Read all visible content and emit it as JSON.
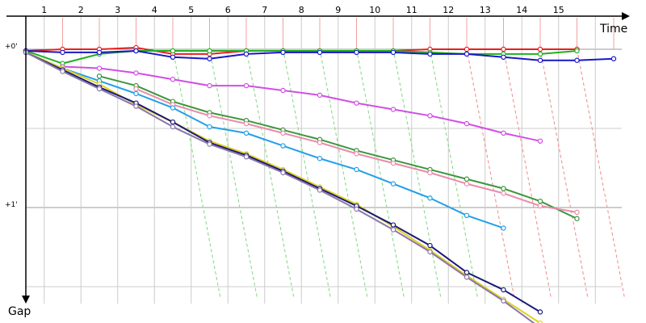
{
  "chart_data": {
    "type": "line",
    "xlabel": "Time",
    "ylabel": "Gap",
    "x_ticks": [
      "1",
      "2",
      "3",
      "4",
      "5",
      "6",
      "7",
      "8",
      "9",
      "10",
      "11",
      "12",
      "13",
      "14",
      "15"
    ],
    "y_ticks": [
      "+0'",
      "+1'"
    ],
    "grid": true,
    "series": [
      {
        "color": "#e82020",
        "points": [
          [
            0,
            0.01
          ],
          [
            1,
            0.0
          ],
          [
            2,
            0.0
          ],
          [
            3,
            -0.01
          ],
          [
            4,
            0.03
          ],
          [
            5,
            0.03
          ],
          [
            6,
            0.01
          ],
          [
            7,
            0.01
          ],
          [
            8,
            0.01
          ],
          [
            9,
            0.01
          ],
          [
            10,
            0.01
          ],
          [
            11,
            0.0
          ],
          [
            12,
            0.0
          ],
          [
            13,
            0.0
          ],
          [
            14,
            0.0
          ],
          [
            15,
            0.0
          ]
        ]
      },
      {
        "color": "#22b022",
        "points": [
          [
            0,
            0.01
          ],
          [
            1,
            0.09
          ],
          [
            2,
            0.03
          ],
          [
            3,
            0.01
          ],
          [
            4,
            0.01
          ],
          [
            5,
            0.01
          ],
          [
            6,
            0.01
          ],
          [
            7,
            0.01
          ],
          [
            8,
            0.01
          ],
          [
            9,
            0.01
          ],
          [
            10,
            0.01
          ],
          [
            11,
            0.02
          ],
          [
            12,
            0.03
          ],
          [
            13,
            0.03
          ],
          [
            14,
            0.03
          ],
          [
            15,
            0.01
          ]
        ]
      },
      {
        "color": "#1818c8",
        "points": [
          [
            0,
            0.01
          ],
          [
            1,
            0.02
          ],
          [
            2,
            0.02
          ],
          [
            3,
            0.01
          ],
          [
            4,
            0.05
          ],
          [
            5,
            0.06
          ],
          [
            6,
            0.03
          ],
          [
            7,
            0.02
          ],
          [
            8,
            0.02
          ],
          [
            9,
            0.02
          ],
          [
            10,
            0.02
          ],
          [
            11,
            0.03
          ],
          [
            12,
            0.03
          ],
          [
            13,
            0.05
          ],
          [
            14,
            0.07
          ],
          [
            15,
            0.07
          ],
          [
            16,
            0.06
          ]
        ]
      },
      {
        "color": "#d24ee6",
        "points": [
          [
            1,
            0.11
          ],
          [
            2,
            0.12
          ],
          [
            3,
            0.15
          ],
          [
            4,
            0.19
          ],
          [
            5,
            0.23
          ],
          [
            6,
            0.23
          ],
          [
            7,
            0.26
          ],
          [
            8,
            0.29
          ],
          [
            9,
            0.34
          ],
          [
            10,
            0.38
          ],
          [
            11,
            0.42
          ],
          [
            12,
            0.47
          ],
          [
            13,
            0.53
          ],
          [
            14,
            0.58
          ]
        ]
      },
      {
        "color": "#3c963c",
        "points": [
          [
            2,
            0.17
          ],
          [
            3,
            0.23
          ],
          [
            4,
            0.33
          ],
          [
            5,
            0.4
          ],
          [
            6,
            0.45
          ],
          [
            7,
            0.51
          ],
          [
            8,
            0.57
          ],
          [
            9,
            0.64
          ],
          [
            10,
            0.7
          ],
          [
            11,
            0.76
          ],
          [
            12,
            0.82
          ],
          [
            13,
            0.88
          ],
          [
            14,
            0.96
          ],
          [
            15,
            1.07
          ]
        ]
      },
      {
        "color": "#e88caa",
        "points": [
          [
            3,
            0.25
          ],
          [
            4,
            0.35
          ],
          [
            5,
            0.42
          ],
          [
            6,
            0.47
          ],
          [
            7,
            0.53
          ],
          [
            8,
            0.59
          ],
          [
            9,
            0.66
          ],
          [
            10,
            0.72
          ],
          [
            11,
            0.78
          ],
          [
            12,
            0.85
          ],
          [
            13,
            0.91
          ],
          [
            14,
            0.99
          ],
          [
            15,
            1.03
          ]
        ]
      },
      {
        "color": "#22a0e8",
        "points": [
          [
            0,
            0.02
          ],
          [
            1,
            0.12
          ],
          [
            2,
            0.2
          ],
          [
            3,
            0.28
          ],
          [
            4,
            0.37
          ],
          [
            5,
            0.49
          ],
          [
            6,
            0.53
          ],
          [
            7,
            0.61
          ],
          [
            8,
            0.69
          ],
          [
            9,
            0.76
          ],
          [
            10,
            0.85
          ],
          [
            11,
            0.94
          ],
          [
            12,
            1.05
          ],
          [
            13,
            1.13
          ]
        ]
      },
      {
        "color": "#e0d020",
        "points": [
          [
            0,
            0.02
          ],
          [
            1,
            0.12
          ],
          [
            2,
            0.22
          ],
          [
            3,
            0.35
          ],
          [
            4,
            0.46
          ],
          [
            5,
            0.58
          ],
          [
            6,
            0.66
          ],
          [
            7,
            0.76
          ],
          [
            8,
            0.87
          ],
          [
            9,
            0.98
          ],
          [
            10,
            1.12
          ],
          [
            11,
            1.27
          ],
          [
            12,
            1.43
          ],
          [
            13,
            1.58
          ],
          [
            14,
            1.73
          ]
        ]
      },
      {
        "color": "#1a1a78",
        "points": [
          [
            0,
            0.02
          ],
          [
            1,
            0.13
          ],
          [
            2,
            0.24
          ],
          [
            3,
            0.34
          ],
          [
            4,
            0.46
          ],
          [
            5,
            0.59
          ],
          [
            6,
            0.67
          ],
          [
            7,
            0.77
          ],
          [
            8,
            0.88
          ],
          [
            9,
            0.99
          ],
          [
            10,
            1.11
          ],
          [
            11,
            1.24
          ],
          [
            12,
            1.41
          ],
          [
            13,
            1.52
          ],
          [
            14,
            1.66
          ]
        ]
      },
      {
        "color": "#8a78a8",
        "points": [
          [
            0,
            0.02
          ],
          [
            1,
            0.14
          ],
          [
            2,
            0.25
          ],
          [
            3,
            0.36
          ],
          [
            4,
            0.49
          ],
          [
            5,
            0.6
          ],
          [
            6,
            0.68
          ],
          [
            7,
            0.78
          ],
          [
            8,
            0.89
          ],
          [
            9,
            1.01
          ],
          [
            10,
            1.14
          ],
          [
            11,
            1.28
          ],
          [
            12,
            1.44
          ],
          [
            13,
            1.59
          ],
          [
            14,
            1.76
          ]
        ]
      }
    ]
  },
  "colors": {
    "grid": "#cccccc",
    "lap_line": "#f2a0a0",
    "diag_green": "#7fd87f",
    "diag_red": "#f08a8a"
  }
}
